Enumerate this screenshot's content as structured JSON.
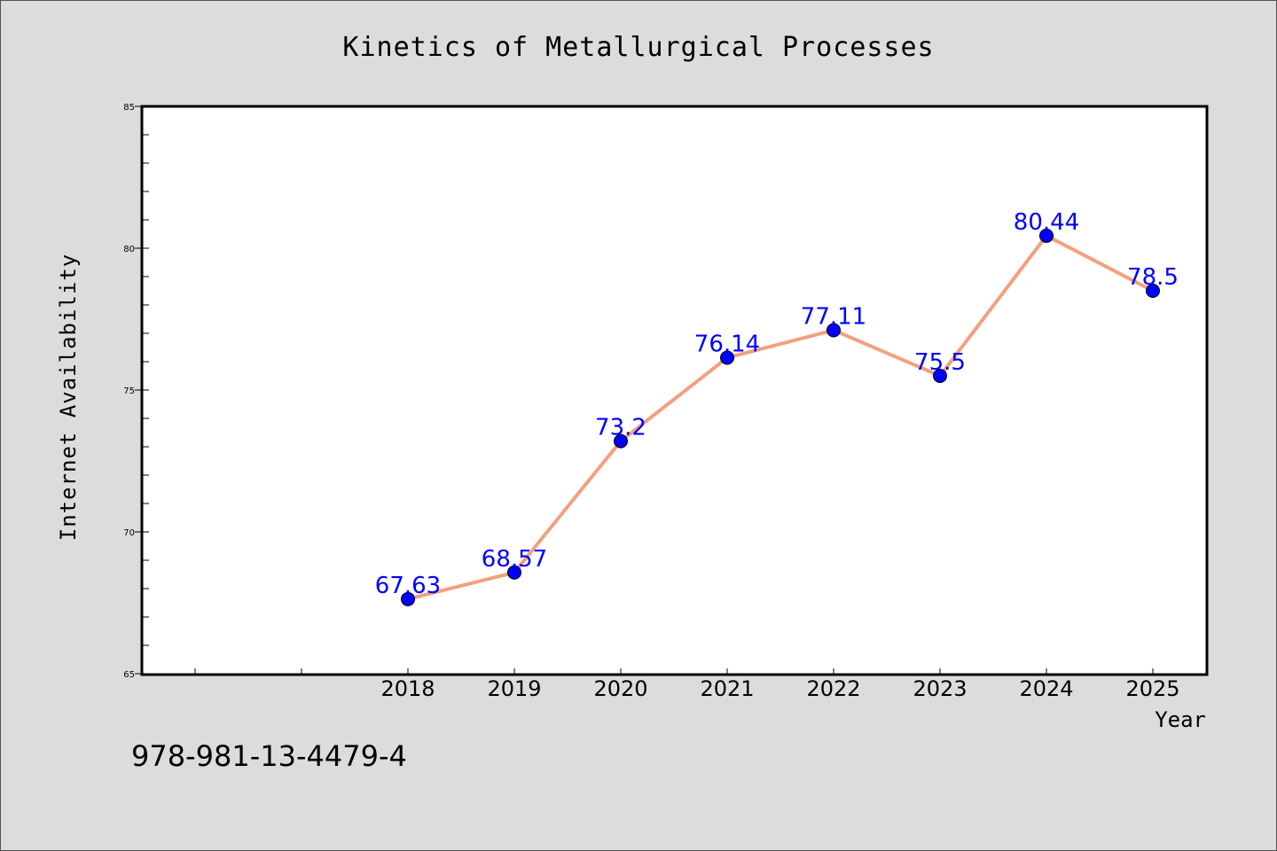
{
  "chart_data": {
    "type": "line",
    "title": "Kinetics of Metallurgical Processes",
    "xlabel": "Year",
    "ylabel": "Internet Availability",
    "categories": [
      "2018",
      "2019",
      "2020",
      "2021",
      "2022",
      "2023",
      "2024",
      "2025"
    ],
    "values": [
      67.63,
      68.57,
      73.2,
      76.14,
      77.11,
      75.5,
      80.44,
      78.5
    ],
    "data_labels": [
      "67.63",
      "68.57",
      "73.2",
      "76.14",
      "77.11",
      "75.5",
      "80.44",
      "78.5"
    ],
    "ylim": [
      65,
      85
    ],
    "yticks": [
      "65",
      "70",
      "75",
      "80",
      "85"
    ],
    "grid": false,
    "line_color": "#f4a07e",
    "marker_color": "#0000ff",
    "label_color": "#0000ff"
  },
  "annotation": "978-981-13-4479-4",
  "colors": {
    "background": "#dcdcdc",
    "plot_background": "#ffffff"
  }
}
